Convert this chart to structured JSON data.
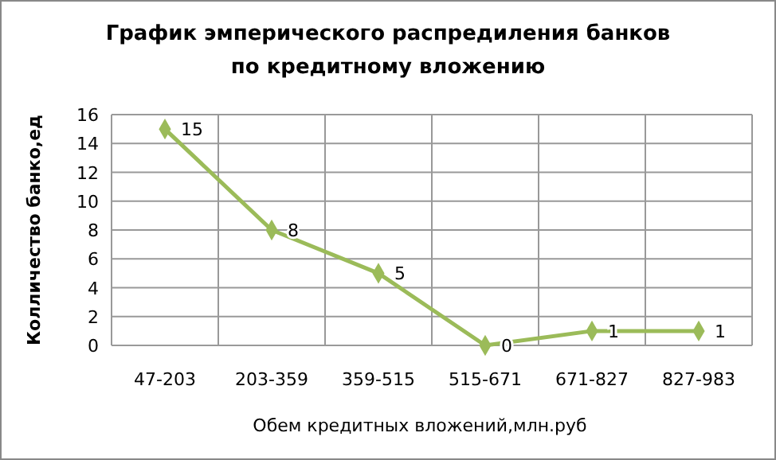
{
  "chart_data": {
    "type": "line",
    "title": "График эмперического распредиления банков по кредитному вложению",
    "xlabel": "Обем кредитных вложений,млн.руб",
    "ylabel": "Колличество банко,ед",
    "categories": [
      "47-203",
      "203-359",
      "359-515",
      "515-671",
      "671-827",
      "827-983"
    ],
    "series": [
      {
        "color": "#9bbb59",
        "values": [
          15,
          8,
          5,
          0,
          1,
          1
        ]
      }
    ],
    "ylim": [
      0,
      16
    ],
    "yticks": [
      0,
      2,
      4,
      6,
      8,
      10,
      12,
      14,
      16
    ],
    "grid": true,
    "marker": "diamond",
    "data_labels": true
  }
}
